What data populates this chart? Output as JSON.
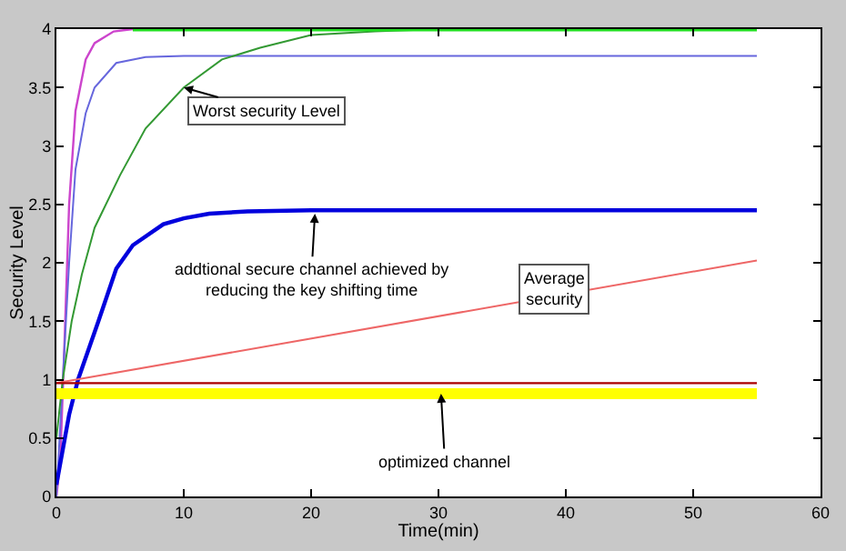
{
  "chart_data": {
    "type": "line",
    "xlabel": "Time(min)",
    "ylabel": "Security Level",
    "xlim": [
      0,
      60
    ],
    "xticks": [
      0,
      10,
      20,
      30,
      40,
      50,
      60
    ],
    "ylim": [
      0,
      4
    ],
    "yticks": [
      0,
      0.5,
      1,
      1.5,
      2,
      2.5,
      3,
      3.5,
      4
    ],
    "marker": "none",
    "line_style": "solid",
    "series": [
      {
        "color": "#cc44cc",
        "x": [
          0,
          0.3,
          0.6,
          1,
          1.5,
          2.3,
          3,
          4.5,
          6
        ],
        "values": [
          0,
          0.3,
          1.2,
          2.5,
          3.3,
          3.74,
          3.88,
          3.98,
          4
        ]
      },
      {
        "color": "#6666dd",
        "x": [
          0,
          0.5,
          1,
          1.5,
          2.3,
          3,
          4.7,
          7,
          10,
          55
        ],
        "values": [
          0,
          1.0,
          2.0,
          2.8,
          3.28,
          3.5,
          3.71,
          3.76,
          3.77,
          3.77
        ]
      },
      {
        "color": "#339933",
        "x": [
          0,
          0.5,
          1.2,
          2,
          3,
          5,
          7,
          10,
          13,
          16,
          20,
          25,
          30,
          55
        ],
        "values": [
          0.5,
          1.0,
          1.5,
          1.9,
          2.3,
          2.75,
          3.15,
          3.5,
          3.74,
          3.84,
          3.95,
          3.98,
          4,
          4
        ]
      },
      {
        "color": "#22dd22",
        "x": [
          6,
          55
        ],
        "values": [
          4,
          4
        ]
      },
      {
        "color": "#0000dd",
        "x": [
          0,
          0.5,
          1,
          1.7,
          3.3,
          4.7,
          6,
          8.4,
          10,
          12,
          15,
          20,
          55
        ],
        "values": [
          0.1,
          0.4,
          0.7,
          1.0,
          1.5,
          1.95,
          2.15,
          2.33,
          2.38,
          2.42,
          2.44,
          2.45,
          2.45
        ]
      },
      {
        "color": "#ee6666",
        "x": [
          0,
          55
        ],
        "values": [
          0.97,
          2.02
        ]
      },
      {
        "color": "#aa0000",
        "x": [
          0,
          55
        ],
        "values": [
          0.97,
          0.97
        ]
      },
      {
        "color": "#ffff00",
        "x": [
          0,
          55
        ],
        "values": [
          0.88,
          0.88
        ]
      }
    ],
    "annotations": [
      {
        "text": "Worst security Level",
        "x": 10,
        "y": 3.5
      },
      {
        "text": "addtional secure channel achieved by\nreducing the key shifting time",
        "x": 20.3,
        "y": 2.42
      },
      "Average\nsecurity",
      {
        "text": "optimized channel",
        "x": 30.2,
        "y": 0.88
      }
    ]
  }
}
